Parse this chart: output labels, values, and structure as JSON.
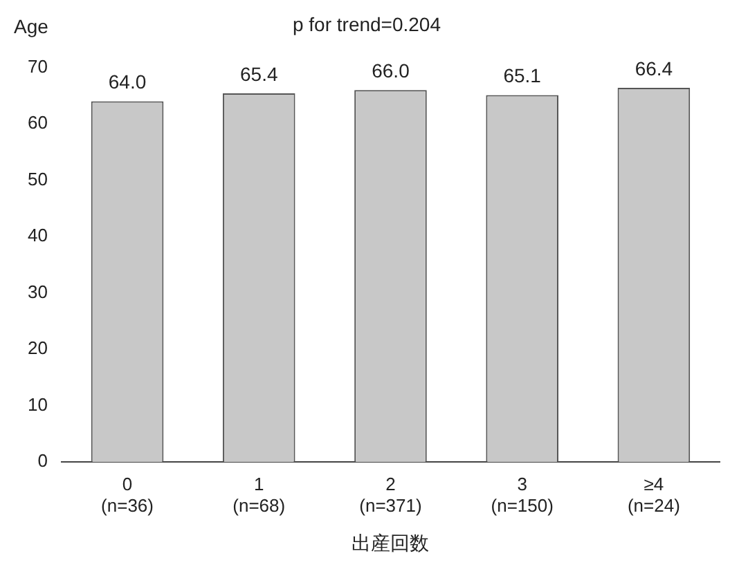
{
  "chart_data": {
    "type": "bar",
    "title": "p for trend=0.204",
    "ylabel": "Age",
    "xlabel": "出産回数",
    "categories": [
      "0\n(n=36)",
      "1\n(n=68)",
      "2\n(n=371)",
      "3\n(n=150)",
      "≥4\n(n=24)"
    ],
    "values": [
      64.0,
      65.4,
      66.0,
      65.1,
      66.4
    ],
    "color": "#c8c8c8",
    "ylim": [
      0,
      70
    ],
    "yticks": [
      0,
      10,
      20,
      30,
      40,
      50,
      60,
      70
    ],
    "grid": false,
    "value_labels": [
      "64.0",
      "65.4",
      "66.0",
      "65.1",
      "66.4"
    ]
  }
}
